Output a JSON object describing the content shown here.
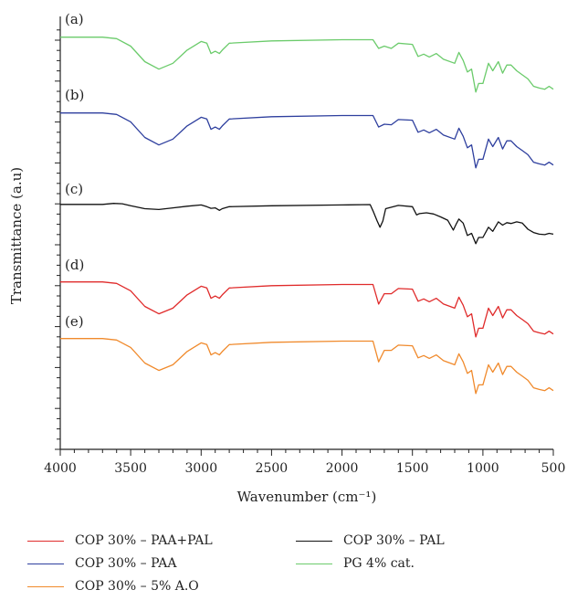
{
  "chart_data": {
    "type": "line",
    "xlabel": "Wavenumber (cm⁻¹)",
    "ylabel": "Transmittance (a.u)",
    "xlim": [
      4000,
      500
    ],
    "x_ticks": [
      "4000",
      "3500",
      "3000",
      "2500",
      "2000",
      "1500",
      "1000",
      "500"
    ],
    "x_reversed": true,
    "grid": false,
    "legend_position": "bottom",
    "panel_labels": [
      "(a)",
      "(b)",
      "(c)",
      "(d)",
      "(e)"
    ],
    "series": [
      {
        "name": "PG 4% cat.",
        "panel": "(a)",
        "color": "#6bcb6b",
        "points": [
          [
            4000,
            0.5
          ],
          [
            3700,
            0.5
          ],
          [
            3600,
            -2
          ],
          [
            3500,
            -15
          ],
          [
            3400,
            -42
          ],
          [
            3300,
            -55
          ],
          [
            3200,
            -45
          ],
          [
            3100,
            -22
          ],
          [
            3000,
            -7
          ],
          [
            2960,
            -10
          ],
          [
            2930,
            -28
          ],
          [
            2900,
            -24
          ],
          [
            2870,
            -28
          ],
          [
            2850,
            -22
          ],
          [
            2800,
            -10
          ],
          [
            2500,
            -6
          ],
          [
            2000,
            -4
          ],
          [
            1780,
            -4
          ],
          [
            1740,
            -19
          ],
          [
            1700,
            -15
          ],
          [
            1650,
            -19
          ],
          [
            1600,
            -10
          ],
          [
            1500,
            -12
          ],
          [
            1460,
            -33
          ],
          [
            1420,
            -29
          ],
          [
            1380,
            -34
          ],
          [
            1330,
            -28
          ],
          [
            1280,
            -38
          ],
          [
            1200,
            -45
          ],
          [
            1170,
            -26
          ],
          [
            1140,
            -40
          ],
          [
            1110,
            -60
          ],
          [
            1080,
            -55
          ],
          [
            1050,
            -95
          ],
          [
            1030,
            -80
          ],
          [
            1000,
            -80
          ],
          [
            960,
            -45
          ],
          [
            930,
            -58
          ],
          [
            890,
            -42
          ],
          [
            860,
            -62
          ],
          [
            830,
            -48
          ],
          [
            800,
            -48
          ],
          [
            760,
            -58
          ],
          [
            720,
            -65
          ],
          [
            680,
            -72
          ],
          [
            640,
            -85
          ],
          [
            600,
            -88
          ],
          [
            560,
            -90
          ],
          [
            530,
            -85
          ],
          [
            500,
            -90
          ]
        ]
      },
      {
        "name": "COP 30% – PAA",
        "panel": "(b)",
        "color": "#2e3f9e",
        "points": [
          [
            4000,
            0.5
          ],
          [
            3700,
            0.5
          ],
          [
            3600,
            -2
          ],
          [
            3500,
            -15
          ],
          [
            3400,
            -42
          ],
          [
            3300,
            -55
          ],
          [
            3200,
            -45
          ],
          [
            3100,
            -22
          ],
          [
            3000,
            -7
          ],
          [
            2960,
            -10
          ],
          [
            2930,
            -28
          ],
          [
            2900,
            -24
          ],
          [
            2870,
            -28
          ],
          [
            2850,
            -22
          ],
          [
            2800,
            -10
          ],
          [
            2500,
            -6
          ],
          [
            2000,
            -4
          ],
          [
            1780,
            -4
          ],
          [
            1740,
            -24
          ],
          [
            1700,
            -19
          ],
          [
            1650,
            -20
          ],
          [
            1600,
            -11
          ],
          [
            1500,
            -12
          ],
          [
            1460,
            -33
          ],
          [
            1420,
            -29
          ],
          [
            1380,
            -34
          ],
          [
            1330,
            -28
          ],
          [
            1280,
            -38
          ],
          [
            1200,
            -45
          ],
          [
            1170,
            -26
          ],
          [
            1140,
            -40
          ],
          [
            1110,
            -60
          ],
          [
            1080,
            -55
          ],
          [
            1050,
            -95
          ],
          [
            1030,
            -80
          ],
          [
            1000,
            -80
          ],
          [
            960,
            -45
          ],
          [
            930,
            -58
          ],
          [
            890,
            -42
          ],
          [
            860,
            -62
          ],
          [
            830,
            -48
          ],
          [
            800,
            -48
          ],
          [
            760,
            -58
          ],
          [
            720,
            -65
          ],
          [
            680,
            -72
          ],
          [
            640,
            -85
          ],
          [
            600,
            -88
          ],
          [
            560,
            -90
          ],
          [
            530,
            -85
          ],
          [
            500,
            -90
          ]
        ]
      },
      {
        "name": "COP 30% – PAL",
        "panel": "(c)",
        "color": "#111111",
        "points": [
          [
            4000,
            0.5
          ],
          [
            3700,
            0.5
          ],
          [
            3620,
            3
          ],
          [
            3560,
            2
          ],
          [
            3500,
            -3
          ],
          [
            3400,
            -10
          ],
          [
            3300,
            -12
          ],
          [
            3200,
            -8
          ],
          [
            3100,
            -4
          ],
          [
            3000,
            -1
          ],
          [
            2960,
            -5
          ],
          [
            2930,
            -9
          ],
          [
            2900,
            -8
          ],
          [
            2870,
            -14
          ],
          [
            2850,
            -10
          ],
          [
            2800,
            -5
          ],
          [
            2500,
            -3
          ],
          [
            2000,
            -1
          ],
          [
            1800,
            0
          ],
          [
            1780,
            -15
          ],
          [
            1750,
            -40
          ],
          [
            1730,
            -55
          ],
          [
            1710,
            -40
          ],
          [
            1690,
            -10
          ],
          [
            1600,
            -2
          ],
          [
            1500,
            -5
          ],
          [
            1470,
            -25
          ],
          [
            1450,
            -22
          ],
          [
            1400,
            -20
          ],
          [
            1350,
            -23
          ],
          [
            1300,
            -30
          ],
          [
            1250,
            -38
          ],
          [
            1210,
            -62
          ],
          [
            1190,
            -48
          ],
          [
            1170,
            -35
          ],
          [
            1140,
            -45
          ],
          [
            1110,
            -75
          ],
          [
            1080,
            -70
          ],
          [
            1050,
            -95
          ],
          [
            1030,
            -80
          ],
          [
            1000,
            -80
          ],
          [
            960,
            -55
          ],
          [
            930,
            -65
          ],
          [
            890,
            -42
          ],
          [
            860,
            -50
          ],
          [
            830,
            -44
          ],
          [
            800,
            -46
          ],
          [
            760,
            -42
          ],
          [
            720,
            -45
          ],
          [
            680,
            -60
          ],
          [
            640,
            -68
          ],
          [
            600,
            -72
          ],
          [
            560,
            -73
          ],
          [
            530,
            -70
          ],
          [
            500,
            -72
          ]
        ]
      },
      {
        "name": "COP 30% – PAA+PAL",
        "panel": "(d)",
        "color": "#e02b2b",
        "points": [
          [
            4000,
            0.5
          ],
          [
            3700,
            0.5
          ],
          [
            3600,
            -2
          ],
          [
            3500,
            -15
          ],
          [
            3400,
            -42
          ],
          [
            3300,
            -55
          ],
          [
            3200,
            -45
          ],
          [
            3100,
            -22
          ],
          [
            3000,
            -7
          ],
          [
            2960,
            -10
          ],
          [
            2930,
            -28
          ],
          [
            2900,
            -24
          ],
          [
            2870,
            -28
          ],
          [
            2850,
            -22
          ],
          [
            2800,
            -10
          ],
          [
            2500,
            -6
          ],
          [
            2000,
            -4
          ],
          [
            1780,
            -4
          ],
          [
            1740,
            -38
          ],
          [
            1700,
            -20
          ],
          [
            1650,
            -20
          ],
          [
            1600,
            -11
          ],
          [
            1500,
            -12
          ],
          [
            1460,
            -33
          ],
          [
            1420,
            -29
          ],
          [
            1380,
            -34
          ],
          [
            1330,
            -28
          ],
          [
            1280,
            -38
          ],
          [
            1200,
            -45
          ],
          [
            1170,
            -26
          ],
          [
            1140,
            -40
          ],
          [
            1110,
            -60
          ],
          [
            1080,
            -55
          ],
          [
            1050,
            -95
          ],
          [
            1030,
            -80
          ],
          [
            1000,
            -80
          ],
          [
            960,
            -45
          ],
          [
            930,
            -58
          ],
          [
            890,
            -42
          ],
          [
            860,
            -62
          ],
          [
            830,
            -48
          ],
          [
            800,
            -48
          ],
          [
            760,
            -58
          ],
          [
            720,
            -65
          ],
          [
            680,
            -72
          ],
          [
            640,
            -85
          ],
          [
            600,
            -88
          ],
          [
            560,
            -90
          ],
          [
            530,
            -85
          ],
          [
            500,
            -90
          ]
        ]
      },
      {
        "name": "COP 30% – 5% A.O",
        "panel": "(e)",
        "color": "#f08a2c",
        "points": [
          [
            4000,
            0.5
          ],
          [
            3700,
            0.5
          ],
          [
            3600,
            -2
          ],
          [
            3500,
            -15
          ],
          [
            3400,
            -42
          ],
          [
            3300,
            -55
          ],
          [
            3200,
            -45
          ],
          [
            3100,
            -22
          ],
          [
            3000,
            -7
          ],
          [
            2960,
            -10
          ],
          [
            2930,
            -28
          ],
          [
            2900,
            -24
          ],
          [
            2870,
            -28
          ],
          [
            2850,
            -22
          ],
          [
            2800,
            -10
          ],
          [
            2500,
            -6
          ],
          [
            2000,
            -4
          ],
          [
            1780,
            -4
          ],
          [
            1740,
            -40
          ],
          [
            1700,
            -20
          ],
          [
            1650,
            -20
          ],
          [
            1600,
            -11
          ],
          [
            1500,
            -12
          ],
          [
            1460,
            -33
          ],
          [
            1420,
            -29
          ],
          [
            1380,
            -34
          ],
          [
            1330,
            -28
          ],
          [
            1280,
            -38
          ],
          [
            1200,
            -45
          ],
          [
            1170,
            -26
          ],
          [
            1140,
            -40
          ],
          [
            1110,
            -60
          ],
          [
            1080,
            -55
          ],
          [
            1050,
            -95
          ],
          [
            1030,
            -80
          ],
          [
            1000,
            -80
          ],
          [
            960,
            -45
          ],
          [
            930,
            -58
          ],
          [
            890,
            -42
          ],
          [
            860,
            -62
          ],
          [
            830,
            -48
          ],
          [
            800,
            -48
          ],
          [
            760,
            -58
          ],
          [
            720,
            -65
          ],
          [
            680,
            -72
          ],
          [
            640,
            -85
          ],
          [
            600,
            -88
          ],
          [
            560,
            -90
          ],
          [
            530,
            -85
          ],
          [
            500,
            -90
          ]
        ]
      }
    ],
    "legend": [
      {
        "label": "COP 30% – PAA+PAL",
        "color": "#e02b2b"
      },
      {
        "label": "COP 30% – PAL",
        "color": "#111111"
      },
      {
        "label": "COP 30% – PAA",
        "color": "#2e3f9e"
      },
      {
        "label": "PG 4% cat.",
        "color": "#6bcb6b"
      },
      {
        "label": "COP 30% – 5% A.O",
        "color": "#f08a2c"
      }
    ]
  }
}
